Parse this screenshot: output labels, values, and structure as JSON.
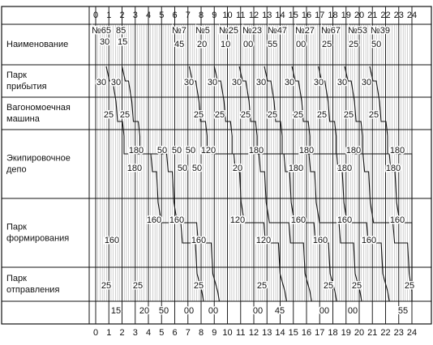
{
  "axis": {
    "hours": [
      "0",
      "1",
      "2",
      "3",
      "4",
      "5",
      "6",
      "7",
      "8",
      "9",
      "10",
      "11",
      "12",
      "13",
      "14",
      "15",
      "16",
      "17",
      "18",
      "19",
      "20",
      "21",
      "22",
      "23",
      "24"
    ]
  },
  "rows": [
    {
      "label": [
        "Наименование"
      ]
    },
    {
      "label": [
        "Парк",
        "прибытия"
      ]
    },
    {
      "label": [
        "Вагономоечная",
        "машина"
      ]
    },
    {
      "label": [
        "Экипировочное",
        "депо"
      ]
    },
    {
      "label": [
        "Парк",
        "формирования"
      ]
    },
    {
      "label": [
        "Парк",
        "отправления"
      ]
    }
  ],
  "trains": [
    {
      "number": "№65",
      "minutes": "30"
    },
    {
      "number": "85",
      "minutes": "15"
    },
    {
      "number": "№7",
      "minutes": "45"
    },
    {
      "number": "№5",
      "minutes": "20"
    },
    {
      "number": "№25",
      "minutes": "10"
    },
    {
      "number": "№23",
      "minutes": "00"
    },
    {
      "number": "№47",
      "minutes": "55"
    },
    {
      "number": "№27",
      "minutes": "00"
    },
    {
      "number": "№67",
      "minutes": "25"
    },
    {
      "number": "№53",
      "minutes": "25"
    },
    {
      "number": "№39",
      "minutes": "50"
    }
  ],
  "arrival_labels": [
    "30",
    "30",
    "30",
    "30",
    "30",
    "30",
    "30",
    "30",
    "30",
    "30"
  ],
  "washing_labels": [
    "25",
    "25",
    "25",
    "25",
    "25",
    "25",
    "25",
    "25",
    "25",
    "25"
  ],
  "depot_upper_labels": [
    "180",
    "50",
    "50",
    "50",
    "120",
    "180",
    "180",
    "180",
    "180"
  ],
  "depot_lower_labels": [
    "180",
    "50",
    "50",
    "20",
    "180",
    "180",
    "180"
  ],
  "formation_upper_labels": [
    "160",
    "160",
    "120",
    "160",
    "160",
    "160"
  ],
  "formation_lower_labels": [
    "160",
    "160",
    "120",
    "160",
    "160"
  ],
  "departure_labels": [
    "25",
    "25",
    "25",
    "25",
    "25",
    "25",
    "25"
  ],
  "departure_minutes": [
    "15",
    "20",
    "50",
    "00",
    "00",
    "00",
    "45",
    "00",
    "00",
    "55"
  ]
}
